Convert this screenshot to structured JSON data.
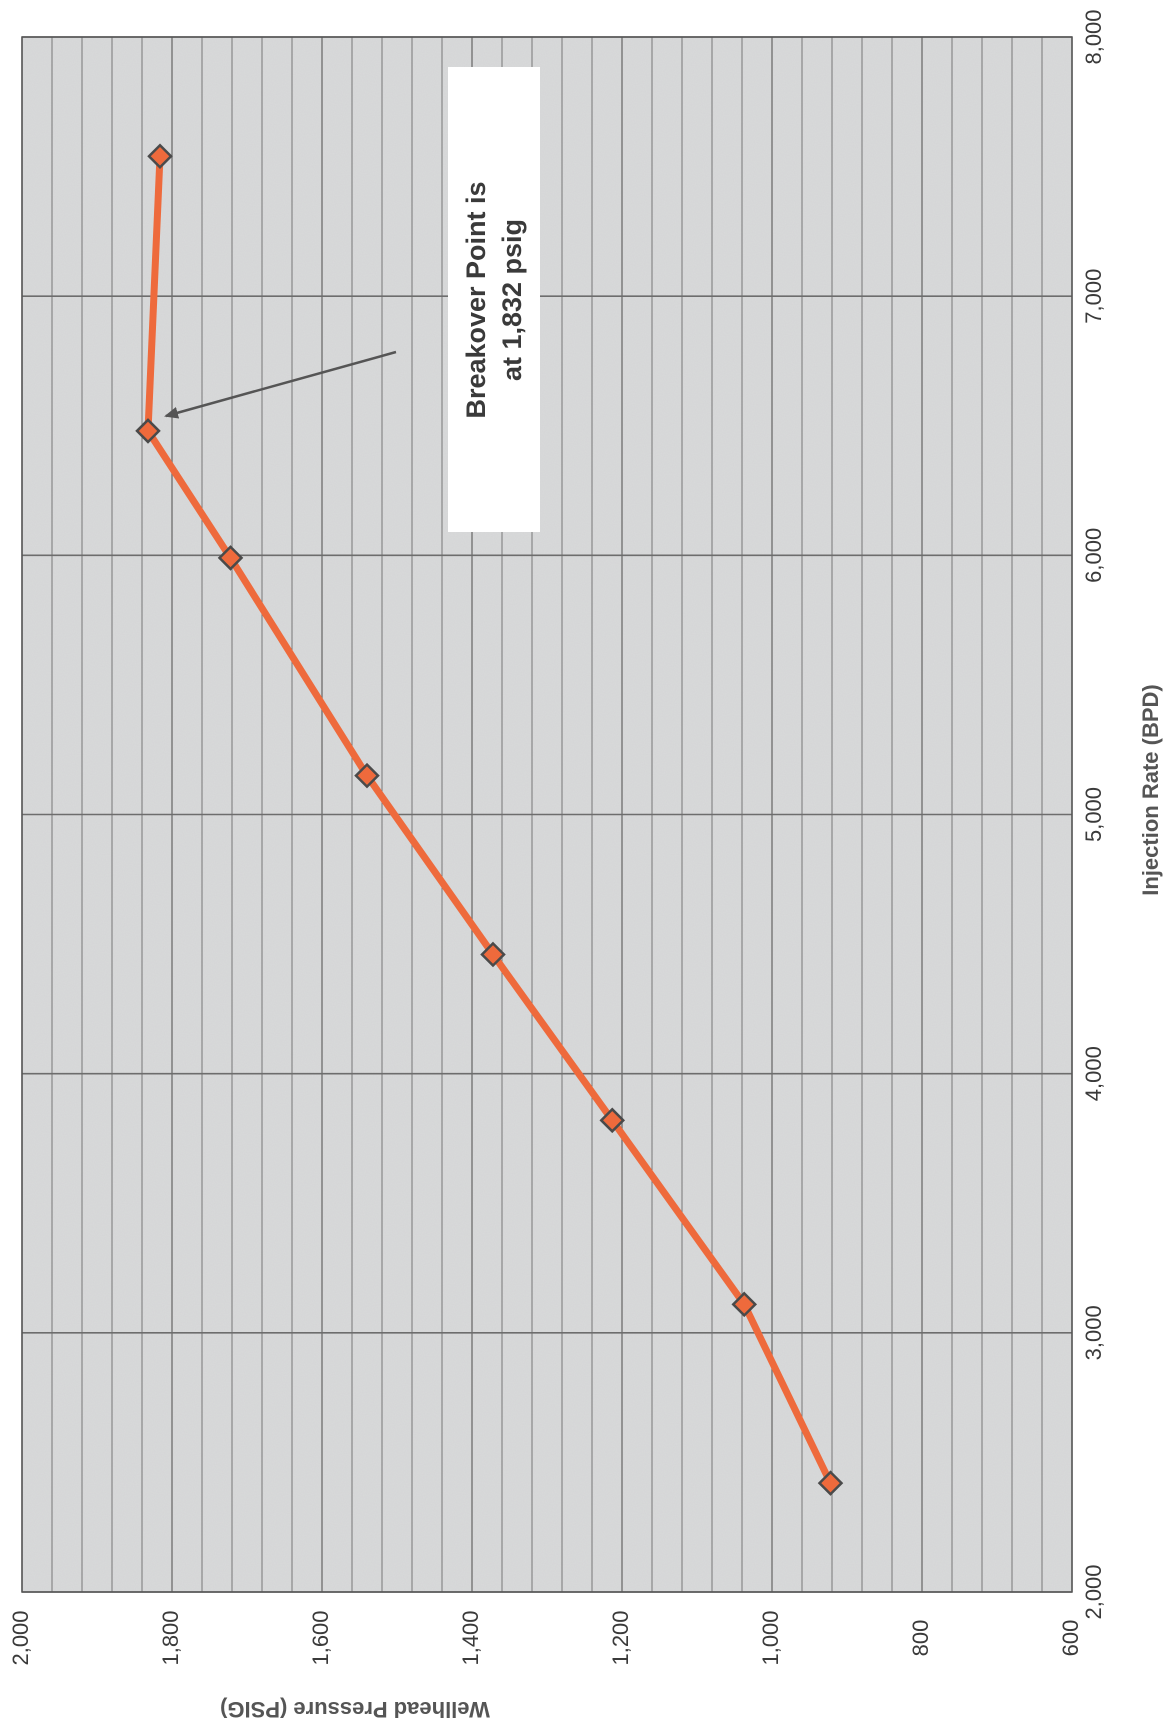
{
  "chart_data": {
    "type": "line",
    "orientation": "rotated 90 degrees clockwise",
    "title": "",
    "xlabel": "Injection Rate (BPD)",
    "ylabel": "Wellhead Pressure (PSIG)",
    "xlim": [
      2000,
      8000
    ],
    "ylim": [
      600,
      2000
    ],
    "x_ticks": [
      "2,000",
      "3,000",
      "4,000",
      "5,000",
      "6,000",
      "7,000",
      "8,000"
    ],
    "y_ticks": [
      "600",
      "800",
      "1,000",
      "1,200",
      "1,400",
      "1,600",
      "1,800",
      "2,000"
    ],
    "grid": true,
    "series": [
      {
        "x": [
          2420,
          3110,
          3820,
          4460,
          5150,
          5990,
          6480,
          7540
        ],
        "y": [
          922,
          1037,
          1213,
          1372,
          1540,
          1722,
          1832,
          1816
        ],
        "color": "#ee6a3c",
        "marker": "diamond",
        "marker_color": "#ee6a3c"
      }
    ],
    "annotations": [
      {
        "lines": [
          "Breakover Point is",
          "at 1,832 psig"
        ],
        "points_to": {
          "x": 6480,
          "y": 1832
        }
      }
    ]
  },
  "colors": {
    "plot_background": "#d9dadb",
    "grid_line": "#6d6d6d",
    "line": "#ee6a3c",
    "marker_outline": "#4a4a4a",
    "arrow": "#555555"
  }
}
